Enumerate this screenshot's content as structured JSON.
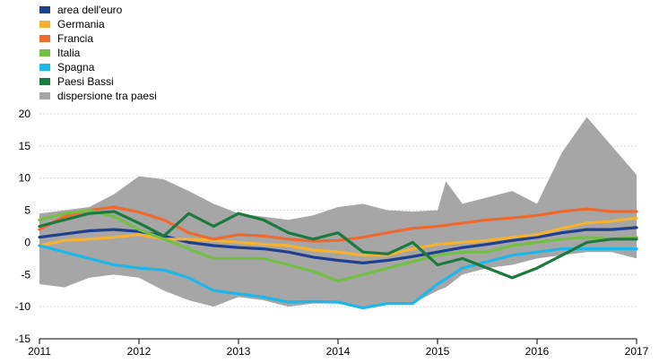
{
  "chart_data": {
    "type": "line",
    "title": "",
    "xlabel": "",
    "ylabel": "",
    "ylim": [
      -15,
      20
    ],
    "xlim": [
      "2011-01",
      "2017-01"
    ],
    "yticks": [
      20,
      15,
      10,
      5,
      0,
      -5,
      -10,
      -15
    ],
    "xticks": [
      "2011",
      "2012",
      "2013",
      "2014",
      "2015",
      "2016",
      "2017"
    ],
    "grid": "horizontal",
    "legend_position": "top-left",
    "band": {
      "name": "dispersione tra paesi",
      "color": "#a6a6a6",
      "x": [
        "2011-01",
        "2011-04",
        "2011-07",
        "2011-10",
        "2012-01",
        "2012-04",
        "2012-07",
        "2012-10",
        "2013-01",
        "2013-04",
        "2013-07",
        "2013-10",
        "2014-01",
        "2014-04",
        "2014-07",
        "2014-10",
        "2015-01",
        "2015-02",
        "2015-04",
        "2015-07",
        "2015-10",
        "2016-01",
        "2016-04",
        "2016-07",
        "2016-10",
        "2017-01"
      ],
      "upper": [
        4.5,
        5,
        5.5,
        7.5,
        10.3,
        9.8,
        8,
        6,
        4.5,
        4,
        3.5,
        4.2,
        5.5,
        6,
        5,
        4.8,
        5,
        9.5,
        6,
        7,
        8,
        6,
        14,
        19.5,
        15,
        10.5
      ],
      "lower": [
        -6.5,
        -7,
        -5.5,
        -5,
        -5.5,
        -7.5,
        -9,
        -10,
        -8.5,
        -9,
        -10,
        -9.5,
        -9.5,
        -10,
        -9.5,
        -9.5,
        -7.5,
        -7,
        -5,
        -4,
        -3.5,
        -2.5,
        -2,
        -1.5,
        -1.5,
        -2.5
      ]
    },
    "series": [
      {
        "name": "area dell'euro",
        "color": "#1f3f8f",
        "x": [
          "2011-01",
          "2011-04",
          "2011-07",
          "2011-10",
          "2012-01",
          "2012-04",
          "2012-07",
          "2012-10",
          "2013-01",
          "2013-04",
          "2013-07",
          "2013-10",
          "2014-01",
          "2014-04",
          "2014-07",
          "2014-10",
          "2015-01",
          "2015-04",
          "2015-07",
          "2015-10",
          "2016-01",
          "2016-04",
          "2016-07",
          "2016-10",
          "2017-01"
        ],
        "values": [
          0.8,
          1.3,
          1.8,
          2,
          1.7,
          1,
          0,
          -0.5,
          -0.8,
          -1,
          -1.5,
          -2.3,
          -2.8,
          -3.2,
          -2.8,
          -2.2,
          -1.5,
          -0.8,
          -0.3,
          0.3,
          0.8,
          1.5,
          2,
          2,
          2.3
        ]
      },
      {
        "name": "Germania",
        "color": "#f5b130",
        "x": [
          "2011-01",
          "2011-04",
          "2011-07",
          "2011-10",
          "2012-01",
          "2012-04",
          "2012-07",
          "2012-10",
          "2013-01",
          "2013-04",
          "2013-07",
          "2013-10",
          "2014-01",
          "2014-04",
          "2014-07",
          "2014-10",
          "2015-01",
          "2015-04",
          "2015-07",
          "2015-10",
          "2016-01",
          "2016-04",
          "2016-07",
          "2016-10",
          "2017-01"
        ],
        "values": [
          -0.5,
          0.3,
          0.5,
          0.8,
          1.2,
          0.5,
          0.5,
          0.3,
          0,
          -0.3,
          -0.5,
          -1.2,
          -1.5,
          -2,
          -2,
          -1,
          -0.3,
          0,
          0.3,
          0.8,
          1.2,
          2.2,
          3,
          3.3,
          3.8
        ]
      },
      {
        "name": "Francia",
        "color": "#ee6a2f",
        "x": [
          "2011-01",
          "2011-04",
          "2011-07",
          "2011-10",
          "2012-01",
          "2012-04",
          "2012-07",
          "2012-10",
          "2013-01",
          "2013-04",
          "2013-07",
          "2013-10",
          "2014-01",
          "2014-04",
          "2014-07",
          "2014-10",
          "2015-01",
          "2015-04",
          "2015-07",
          "2015-10",
          "2016-01",
          "2016-04",
          "2016-07",
          "2016-10",
          "2017-01"
        ],
        "values": [
          2,
          4,
          5,
          5.5,
          4.7,
          3.5,
          1.5,
          0.5,
          1.2,
          1,
          0.5,
          0.2,
          0.3,
          0.8,
          1.5,
          2.2,
          2.5,
          3,
          3.5,
          3.8,
          4.2,
          4.8,
          5.2,
          4.8,
          4.8
        ]
      },
      {
        "name": "Italia",
        "color": "#72bf44",
        "x": [
          "2011-01",
          "2011-04",
          "2011-07",
          "2011-10",
          "2012-01",
          "2012-04",
          "2012-07",
          "2012-10",
          "2013-01",
          "2013-04",
          "2013-07",
          "2013-10",
          "2014-01",
          "2014-04",
          "2014-07",
          "2014-10",
          "2015-01",
          "2015-04",
          "2015-07",
          "2015-10",
          "2016-01",
          "2016-04",
          "2016-07",
          "2016-10",
          "2017-01"
        ],
        "values": [
          3.5,
          4.5,
          5,
          4,
          2,
          0.5,
          -1,
          -2.5,
          -2.5,
          -2.5,
          -3.5,
          -4.5,
          -6,
          -5,
          -4,
          -3,
          -2,
          -1.5,
          -1.5,
          -0.5,
          0,
          0.5,
          0.8,
          0.5,
          0.8
        ]
      },
      {
        "name": "Spagna",
        "color": "#1eb7ea",
        "x": [
          "2011-01",
          "2011-04",
          "2011-07",
          "2011-10",
          "2012-01",
          "2012-04",
          "2012-07",
          "2012-10",
          "2013-01",
          "2013-04",
          "2013-07",
          "2013-10",
          "2014-01",
          "2014-04",
          "2014-07",
          "2014-10",
          "2015-01",
          "2015-04",
          "2015-07",
          "2015-10",
          "2016-01",
          "2016-04",
          "2016-07",
          "2016-10",
          "2017-01"
        ],
        "values": [
          -0.5,
          -1.5,
          -2.5,
          -3.5,
          -4,
          -4.3,
          -5.5,
          -7.5,
          -8,
          -8.5,
          -9.3,
          -9.2,
          -9.3,
          -10.2,
          -9.5,
          -9.5,
          -6.5,
          -4,
          -3,
          -2,
          -1.5,
          -1,
          -1,
          -1,
          -1
        ]
      },
      {
        "name": "Paesi Bassi",
        "color": "#1d7a3f",
        "x": [
          "2011-01",
          "2011-04",
          "2011-07",
          "2011-10",
          "2012-01",
          "2012-04",
          "2012-07",
          "2012-10",
          "2013-01",
          "2013-04",
          "2013-07",
          "2013-10",
          "2014-01",
          "2014-04",
          "2014-07",
          "2014-10",
          "2015-01",
          "2015-04",
          "2015-07",
          "2015-10",
          "2016-01",
          "2016-04",
          "2016-07",
          "2016-10",
          "2017-01"
        ],
        "values": [
          2.5,
          3.5,
          4.5,
          4.8,
          3,
          1,
          4.5,
          2.5,
          4.5,
          3.5,
          1.5,
          0.5,
          1.5,
          -1.5,
          -1.8,
          0,
          -3.5,
          -2.5,
          -4,
          -5.5,
          -4,
          -2,
          0,
          0.5,
          0.5
        ]
      }
    ],
    "legend": [
      {
        "label": "area dell'euro",
        "color": "#1f3f8f"
      },
      {
        "label": "Germania",
        "color": "#f5b130"
      },
      {
        "label": "Francia",
        "color": "#ee6a2f"
      },
      {
        "label": "Italia",
        "color": "#72bf44"
      },
      {
        "label": "Spagna",
        "color": "#1eb7ea"
      },
      {
        "label": "Paesi Bassi",
        "color": "#1d7a3f"
      },
      {
        "label": "dispersione tra paesi",
        "color": "#a6a6a6"
      }
    ]
  }
}
